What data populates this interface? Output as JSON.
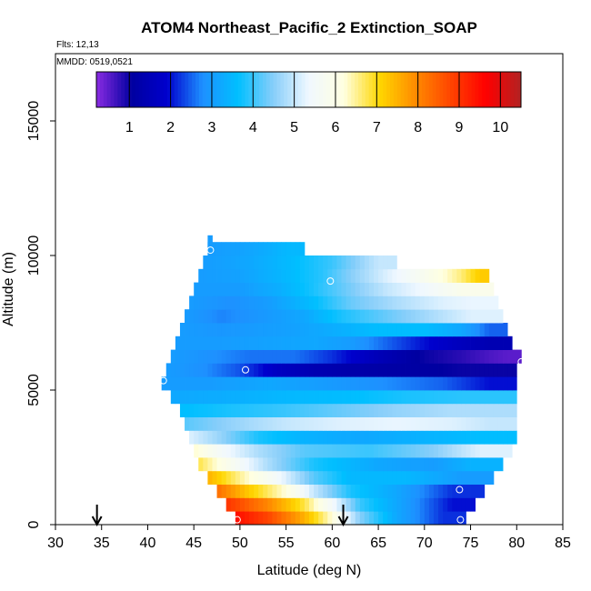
{
  "chart_data": {
    "type": "heatmap",
    "title": "ATOM4 Northeast_Pacific_2 Extinction_SOAP",
    "flights_label": "Flts: 12,13",
    "dates_label": "MMDD: 0519,0521",
    "xlabel": "Latitude (deg N)",
    "ylabel": "Altitude (m)",
    "xlim": [
      30,
      85
    ],
    "ylim": [
      0,
      17500
    ],
    "x_ticks": [
      "30",
      "35",
      "40",
      "45",
      "50",
      "55",
      "60",
      "65",
      "70",
      "75",
      "80",
      "85"
    ],
    "y_ticks": [
      "0",
      "5000",
      "10000",
      "15000"
    ],
    "colorbar": {
      "range": [
        0.2,
        10.5
      ],
      "ticks": [
        "1",
        "2",
        "3",
        "4",
        "5",
        "6",
        "7",
        "8",
        "9",
        "10"
      ],
      "colors": [
        "#8a2be2",
        "#0000a0",
        "#0000cd",
        "#1e90ff",
        "#00bfff",
        "#87cefa",
        "#f0f8ff",
        "#ffffe0",
        "#ffd700",
        "#ff8c00",
        "#ff4500",
        "#ff0000",
        "#b22222"
      ]
    },
    "arrows_latitude": [
      34.5,
      61.2
    ],
    "bands": [
      {
        "alt": 250,
        "lat_min": 49.5,
        "lat_max": 74.5,
        "segments": [
          [
            49.5,
            9.5
          ],
          [
            53,
            8.8
          ],
          [
            57,
            7.5
          ],
          [
            60,
            6.2
          ],
          [
            63,
            4.5
          ],
          [
            67,
            3.2
          ],
          [
            72,
            2.2
          ]
        ]
      },
      {
        "alt": 750,
        "lat_min": 48.5,
        "lat_max": 75.5,
        "segments": [
          [
            48.5,
            9.0
          ],
          [
            53,
            8.0
          ],
          [
            57,
            6.8
          ],
          [
            60,
            5.5
          ],
          [
            63,
            4.0
          ],
          [
            68,
            3.0
          ],
          [
            73,
            2.0
          ]
        ]
      },
      {
        "alt": 1250,
        "lat_min": 47.5,
        "lat_max": 76.5,
        "segments": [
          [
            47.5,
            8.3
          ],
          [
            51,
            7.2
          ],
          [
            55,
            6.2
          ],
          [
            58,
            5.0
          ],
          [
            62,
            3.8
          ],
          [
            67,
            3.2
          ],
          [
            73,
            2.2
          ]
        ]
      },
      {
        "alt": 1750,
        "lat_min": 46.5,
        "lat_max": 77.5,
        "segments": [
          [
            46.5,
            7.5
          ],
          [
            50,
            6.5
          ],
          [
            54,
            5.5
          ],
          [
            58,
            4.2
          ],
          [
            62,
            3.5
          ],
          [
            68,
            3.5
          ],
          [
            74,
            3.0
          ]
        ]
      },
      {
        "alt": 2250,
        "lat_min": 45.5,
        "lat_max": 78.5,
        "segments": [
          [
            45.5,
            6.8
          ],
          [
            49,
            5.8
          ],
          [
            53,
            4.8
          ],
          [
            58,
            3.8
          ],
          [
            65,
            3.2
          ],
          [
            71,
            3.0
          ],
          [
            75,
            3.4
          ]
        ]
      },
      {
        "alt": 2750,
        "lat_min": 45,
        "lat_max": 79.5,
        "segments": [
          [
            45,
            6.3
          ],
          [
            48,
            5.5
          ],
          [
            52,
            4.8
          ],
          [
            57,
            4.2
          ],
          [
            64,
            4.0
          ],
          [
            71,
            4.5
          ],
          [
            76,
            5.2
          ]
        ]
      },
      {
        "alt": 3250,
        "lat_min": 44.5,
        "lat_max": 80,
        "segments": [
          [
            44.5,
            5.2
          ],
          [
            48,
            4.6
          ],
          [
            52,
            3.8
          ],
          [
            57,
            3.4
          ],
          [
            63,
            3.2
          ],
          [
            70,
            3.4
          ],
          [
            76,
            3.6
          ]
        ]
      },
      {
        "alt": 3750,
        "lat_min": 44,
        "lat_max": 80,
        "segments": [
          [
            44,
            4.2
          ],
          [
            49,
            4.6
          ],
          [
            55,
            5.0
          ],
          [
            61,
            5.2
          ],
          [
            67,
            5.3
          ],
          [
            73,
            5.2
          ],
          [
            77,
            5.0
          ]
        ]
      },
      {
        "alt": 4250,
        "lat_min": 43.5,
        "lat_max": 80,
        "segments": [
          [
            43.5,
            3.6
          ],
          [
            49,
            3.8
          ],
          [
            55,
            4.0
          ],
          [
            61,
            4.3
          ],
          [
            67,
            4.6
          ],
          [
            73,
            4.8
          ]
        ]
      },
      {
        "alt": 4750,
        "lat_min": 42.5,
        "lat_max": 80,
        "segments": [
          [
            42.5,
            3.2
          ],
          [
            48,
            3.3
          ],
          [
            55,
            3.5
          ],
          [
            62,
            3.6
          ],
          [
            68,
            3.8
          ],
          [
            74,
            3.9
          ]
        ]
      },
      {
        "alt": 5250,
        "lat_min": 41.5,
        "lat_max": 80,
        "segments": [
          [
            41.5,
            3.0
          ],
          [
            47,
            3.0
          ],
          [
            53,
            3.2
          ],
          [
            59,
            3.0
          ],
          [
            65,
            2.8
          ],
          [
            72,
            2.5
          ],
          [
            77,
            2.0
          ]
        ]
      },
      {
        "alt": 5750,
        "lat_min": 42,
        "lat_max": 80,
        "segments": [
          [
            42,
            3.0
          ],
          [
            46,
            2.8
          ],
          [
            50,
            2.4
          ],
          [
            54,
            1.7
          ],
          [
            58,
            1.4
          ],
          [
            64,
            1.2
          ],
          [
            70,
            1.1
          ],
          [
            74,
            1.0
          ]
        ]
      },
      {
        "alt": 6250,
        "lat_min": 42.5,
        "lat_max": 80.5,
        "segments": [
          [
            42.5,
            3.0
          ],
          [
            47,
            2.8
          ],
          [
            51,
            2.6
          ],
          [
            56,
            2.6
          ],
          [
            60,
            2.2
          ],
          [
            65,
            1.5
          ],
          [
            70,
            1.0
          ],
          [
            74,
            0.8
          ],
          [
            77,
            0.6
          ],
          [
            79,
            0.5
          ]
        ]
      },
      {
        "alt": 6750,
        "lat_min": 43,
        "lat_max": 79.5,
        "segments": [
          [
            43,
            3.0
          ],
          [
            48,
            3.0
          ],
          [
            53,
            3.1
          ],
          [
            58,
            3.2
          ],
          [
            62,
            3.0
          ],
          [
            66,
            2.5
          ],
          [
            70,
            2.0
          ],
          [
            74,
            1.6
          ],
          [
            77,
            1.4
          ]
        ]
      },
      {
        "alt": 7250,
        "lat_min": 43.5,
        "lat_max": 79,
        "segments": [
          [
            43.5,
            3.0
          ],
          [
            48,
            2.9
          ],
          [
            52,
            3.0
          ],
          [
            56,
            3.1
          ],
          [
            60,
            3.3
          ],
          [
            65,
            3.6
          ],
          [
            70,
            3.6
          ],
          [
            74,
            3.2
          ],
          [
            77,
            2.5
          ]
        ]
      },
      {
        "alt": 7750,
        "lat_min": 44,
        "lat_max": 78.5,
        "segments": [
          [
            44,
            3.0
          ],
          [
            48,
            2.7
          ],
          [
            52,
            2.9
          ],
          [
            57,
            3.2
          ],
          [
            61,
            3.8
          ],
          [
            66,
            4.3
          ],
          [
            71,
            4.8
          ],
          [
            75,
            5.2
          ]
        ]
      },
      {
        "alt": 8250,
        "lat_min": 44.5,
        "lat_max": 78,
        "segments": [
          [
            44.5,
            3.0
          ],
          [
            49,
            2.8
          ],
          [
            53,
            3.0
          ],
          [
            58,
            3.6
          ],
          [
            62,
            4.3
          ],
          [
            67,
            4.8
          ],
          [
            72,
            5.2
          ],
          [
            75,
            5.3
          ]
        ]
      },
      {
        "alt": 8750,
        "lat_min": 45,
        "lat_max": 77.5,
        "segments": [
          [
            45,
            3.0
          ],
          [
            50,
            3.0
          ],
          [
            54,
            3.3
          ],
          [
            58,
            3.8
          ],
          [
            62,
            4.4
          ],
          [
            66,
            5.0
          ],
          [
            70,
            5.4
          ],
          [
            74,
            5.9
          ]
        ]
      },
      {
        "alt": 9250,
        "lat_min": 45.5,
        "lat_max": 77,
        "segments": [
          [
            45.5,
            3.0
          ],
          [
            50,
            3.1
          ],
          [
            55,
            3.5
          ],
          [
            59,
            3.9
          ],
          [
            62,
            4.5
          ],
          [
            66,
            5.2
          ],
          [
            70,
            5.8
          ],
          [
            74,
            6.6
          ],
          [
            76,
            7.2
          ]
        ]
      },
      {
        "alt": 9750,
        "lat_min": 46,
        "lat_max": 67,
        "segments": [
          [
            46,
            3.0
          ],
          [
            51,
            3.2
          ],
          [
            56,
            3.6
          ],
          [
            60,
            4.0
          ],
          [
            63,
            4.6
          ],
          [
            65,
            5.0
          ]
        ]
      },
      {
        "alt": 10250,
        "lat_min": 46.5,
        "lat_max": 57,
        "segments": [
          [
            46.5,
            3.0
          ],
          [
            50,
            3.1
          ],
          [
            53,
            3.3
          ],
          [
            55,
            3.5
          ]
        ]
      },
      {
        "alt": 10500,
        "lat_min": 46.5,
        "lat_max": 47,
        "segments": [
          [
            46.5,
            3.0
          ]
        ]
      }
    ],
    "markers": [
      {
        "lat": 46.8,
        "alt": 10200
      },
      {
        "lat": 59.8,
        "alt": 9050
      },
      {
        "lat": 41.7,
        "alt": 5350
      },
      {
        "lat": 50.6,
        "alt": 5750
      },
      {
        "lat": 80.5,
        "alt": 6050
      },
      {
        "lat": 73.8,
        "alt": 1300
      },
      {
        "lat": 49.7,
        "alt": 180
      },
      {
        "lat": 73.9,
        "alt": 180
      }
    ]
  }
}
